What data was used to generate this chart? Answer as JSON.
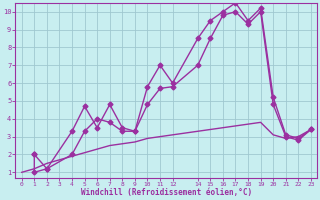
{
  "title": "",
  "xlabel": "Windchill (Refroidissement éolien,°C)",
  "background_color": "#c8eef0",
  "grid_color": "#a0c8d0",
  "line_color": "#9b30a0",
  "xlim": [
    -0.5,
    23.5
  ],
  "ylim": [
    0.7,
    10.5
  ],
  "xticks": [
    0,
    1,
    2,
    3,
    4,
    5,
    6,
    7,
    8,
    9,
    10,
    11,
    12,
    14,
    15,
    16,
    17,
    18,
    19,
    20,
    21,
    22,
    23
  ],
  "yticks": [
    1,
    2,
    3,
    4,
    5,
    6,
    7,
    8,
    9,
    10
  ],
  "series1_x": [
    1,
    1,
    2,
    4,
    5,
    6,
    7,
    8,
    9,
    10,
    11,
    12,
    14,
    15,
    16,
    17,
    18,
    19,
    20,
    21,
    22,
    23
  ],
  "series1_y": [
    2.0,
    1.0,
    1.2,
    3.3,
    4.7,
    3.5,
    4.8,
    3.5,
    3.3,
    5.8,
    7.0,
    6.0,
    8.5,
    9.5,
    10.0,
    10.5,
    9.5,
    10.2,
    5.2,
    3.1,
    2.9,
    3.4
  ],
  "series2_x": [
    1,
    2,
    4,
    5,
    6,
    7,
    8,
    9,
    10,
    11,
    12,
    14,
    15,
    16,
    17,
    18,
    19,
    20,
    21,
    22,
    23
  ],
  "series2_y": [
    2.0,
    1.2,
    2.0,
    3.3,
    4.0,
    3.8,
    3.3,
    3.3,
    4.8,
    5.7,
    5.8,
    7.0,
    8.5,
    9.8,
    10.0,
    9.3,
    10.0,
    4.8,
    3.0,
    2.8,
    3.4
  ],
  "series3_x": [
    0,
    1,
    2,
    3,
    4,
    5,
    6,
    7,
    8,
    9,
    10,
    11,
    12,
    14,
    15,
    16,
    17,
    18,
    19,
    20,
    21,
    22,
    23
  ],
  "series3_y": [
    1.0,
    1.2,
    1.5,
    1.7,
    1.9,
    2.1,
    2.3,
    2.5,
    2.6,
    2.7,
    2.9,
    3.0,
    3.1,
    3.3,
    3.4,
    3.5,
    3.6,
    3.7,
    3.8,
    3.1,
    2.9,
    3.0,
    3.4
  ],
  "marker": "D",
  "markersize": 2.5,
  "linewidth": 1.0
}
